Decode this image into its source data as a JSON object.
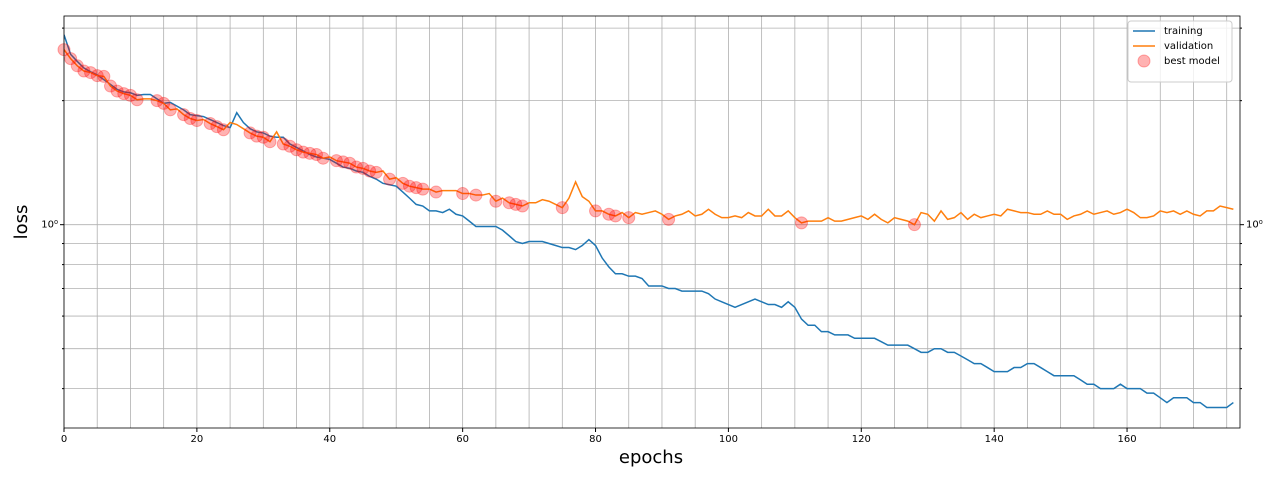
{
  "chart_data": {
    "type": "line",
    "xlabel": "epochs",
    "ylabel": "loss",
    "xlim": [
      0,
      177
    ],
    "xticks": [
      0,
      20,
      40,
      60,
      80,
      100,
      120,
      140,
      160
    ],
    "xminorticks": [
      5,
      10,
      15,
      25,
      30,
      35,
      45,
      50,
      55,
      65,
      70,
      75,
      85,
      90,
      95,
      105,
      110,
      115,
      125,
      130,
      135,
      145,
      150,
      155,
      165,
      170,
      175
    ],
    "yscale": "log",
    "ylim": [
      0.321,
      3.21
    ],
    "yticks": [
      {
        "value": 1,
        "label": "10⁰"
      }
    ],
    "yminorticks": [
      0.4,
      0.5,
      0.6,
      0.7,
      0.8,
      0.9,
      2,
      3
    ],
    "grid": true,
    "legend": "upper right",
    "x": [
      0,
      1,
      2,
      3,
      4,
      5,
      6,
      7,
      8,
      9,
      10,
      11,
      12,
      13,
      14,
      15,
      16,
      17,
      18,
      19,
      20,
      21,
      22,
      23,
      24,
      25,
      26,
      27,
      28,
      29,
      30,
      31,
      32,
      33,
      34,
      35,
      36,
      37,
      38,
      39,
      40,
      41,
      42,
      43,
      44,
      45,
      46,
      47,
      48,
      49,
      50,
      51,
      52,
      53,
      54,
      55,
      56,
      57,
      58,
      59,
      60,
      61,
      62,
      63,
      64,
      65,
      66,
      67,
      68,
      69,
      70,
      71,
      72,
      73,
      74,
      75,
      76,
      77,
      78,
      79,
      80,
      81,
      82,
      83,
      84,
      85,
      86,
      87,
      88,
      89,
      90,
      91,
      92,
      93,
      94,
      95,
      96,
      97,
      98,
      99,
      100,
      101,
      102,
      103,
      104,
      105,
      106,
      107,
      108,
      109,
      110,
      111,
      112,
      113,
      114,
      115,
      116,
      117,
      118,
      119,
      120,
      121,
      122,
      123,
      124,
      125,
      126,
      127,
      128,
      129,
      130,
      131,
      132,
      133,
      134,
      135,
      136,
      137,
      138,
      139,
      140,
      141,
      142,
      143,
      144,
      145,
      146,
      147,
      148,
      149,
      150,
      151,
      152,
      153,
      154,
      155,
      156,
      157,
      158,
      159,
      160,
      161,
      162,
      163,
      164,
      165,
      166,
      167,
      168,
      169,
      170,
      171,
      172,
      173,
      174,
      175,
      176
    ],
    "series": [
      {
        "name": "training",
        "color": "#1f77b4",
        "values": [
          2.89,
          2.59,
          2.49,
          2.4,
          2.35,
          2.31,
          2.25,
          2.19,
          2.13,
          2.1,
          2.09,
          2.06,
          2.07,
          2.07,
          2.02,
          1.97,
          1.98,
          1.94,
          1.9,
          1.85,
          1.84,
          1.83,
          1.8,
          1.77,
          1.74,
          1.72,
          1.87,
          1.77,
          1.71,
          1.68,
          1.67,
          1.64,
          1.63,
          1.63,
          1.57,
          1.54,
          1.51,
          1.48,
          1.46,
          1.45,
          1.44,
          1.41,
          1.38,
          1.37,
          1.35,
          1.34,
          1.31,
          1.29,
          1.26,
          1.25,
          1.24,
          1.2,
          1.16,
          1.12,
          1.11,
          1.08,
          1.08,
          1.07,
          1.09,
          1.06,
          1.05,
          1.02,
          0.99,
          0.99,
          0.99,
          0.99,
          0.97,
          0.94,
          0.91,
          0.9,
          0.91,
          0.91,
          0.91,
          0.9,
          0.89,
          0.88,
          0.88,
          0.87,
          0.89,
          0.92,
          0.89,
          0.83,
          0.79,
          0.76,
          0.76,
          0.75,
          0.75,
          0.74,
          0.71,
          0.71,
          0.71,
          0.7,
          0.7,
          0.69,
          0.69,
          0.69,
          0.69,
          0.68,
          0.66,
          0.65,
          0.64,
          0.63,
          0.64,
          0.65,
          0.66,
          0.65,
          0.64,
          0.64,
          0.63,
          0.65,
          0.63,
          0.59,
          0.57,
          0.57,
          0.55,
          0.55,
          0.54,
          0.54,
          0.54,
          0.53,
          0.53,
          0.53,
          0.53,
          0.52,
          0.51,
          0.51,
          0.51,
          0.51,
          0.5,
          0.49,
          0.49,
          0.5,
          0.5,
          0.49,
          0.49,
          0.48,
          0.47,
          0.46,
          0.46,
          0.45,
          0.44,
          0.44,
          0.44,
          0.45,
          0.45,
          0.46,
          0.46,
          0.45,
          0.44,
          0.43,
          0.43,
          0.43,
          0.43,
          0.42,
          0.41,
          0.41,
          0.4,
          0.4,
          0.4,
          0.41,
          0.4,
          0.4,
          0.4,
          0.39,
          0.39,
          0.38,
          0.37,
          0.38,
          0.38,
          0.38,
          0.37,
          0.37,
          0.36,
          0.36,
          0.36,
          0.36,
          0.37
        ]
      },
      {
        "name": "validation",
        "color": "#ff7f0e",
        "values": [
          2.66,
          2.53,
          2.43,
          2.36,
          2.34,
          2.3,
          2.29,
          2.17,
          2.11,
          2.08,
          2.06,
          2.01,
          2.02,
          2.02,
          2.0,
          1.97,
          1.9,
          1.91,
          1.85,
          1.81,
          1.79,
          1.8,
          1.76,
          1.73,
          1.7,
          1.77,
          1.75,
          1.71,
          1.67,
          1.64,
          1.63,
          1.59,
          1.68,
          1.57,
          1.55,
          1.52,
          1.5,
          1.49,
          1.48,
          1.45,
          1.46,
          1.43,
          1.42,
          1.41,
          1.38,
          1.37,
          1.35,
          1.34,
          1.35,
          1.29,
          1.3,
          1.26,
          1.24,
          1.23,
          1.22,
          1.22,
          1.2,
          1.21,
          1.21,
          1.21,
          1.19,
          1.19,
          1.18,
          1.18,
          1.19,
          1.14,
          1.16,
          1.13,
          1.12,
          1.11,
          1.13,
          1.13,
          1.15,
          1.14,
          1.12,
          1.1,
          1.16,
          1.27,
          1.17,
          1.14,
          1.08,
          1.08,
          1.06,
          1.05,
          1.07,
          1.04,
          1.07,
          1.06,
          1.07,
          1.08,
          1.06,
          1.03,
          1.05,
          1.06,
          1.08,
          1.05,
          1.06,
          1.09,
          1.06,
          1.04,
          1.04,
          1.05,
          1.04,
          1.07,
          1.05,
          1.05,
          1.09,
          1.05,
          1.05,
          1.08,
          1.04,
          1.01,
          1.02,
          1.02,
          1.02,
          1.04,
          1.02,
          1.02,
          1.03,
          1.04,
          1.05,
          1.03,
          1.06,
          1.03,
          1.01,
          1.04,
          1.03,
          1.02,
          1.0,
          1.07,
          1.06,
          1.02,
          1.08,
          1.03,
          1.04,
          1.07,
          1.03,
          1.06,
          1.04,
          1.05,
          1.06,
          1.05,
          1.09,
          1.08,
          1.07,
          1.07,
          1.06,
          1.06,
          1.08,
          1.06,
          1.06,
          1.03,
          1.05,
          1.06,
          1.08,
          1.06,
          1.07,
          1.08,
          1.06,
          1.07,
          1.09,
          1.07,
          1.04,
          1.04,
          1.05,
          1.08,
          1.07,
          1.08,
          1.06,
          1.08,
          1.06,
          1.05,
          1.08,
          1.08,
          1.11,
          1.1,
          1.09
        ]
      },
      {
        "name": "best model",
        "type": "scatter",
        "color": "#ff0000",
        "alpha": 0.3,
        "x": [
          0,
          1,
          2,
          3,
          4,
          5,
          6,
          7,
          8,
          9,
          10,
          11,
          14,
          15,
          16,
          18,
          19,
          20,
          22,
          23,
          24,
          28,
          29,
          30,
          31,
          33,
          34,
          35,
          36,
          37,
          38,
          39,
          41,
          42,
          43,
          44,
          45,
          46,
          47,
          49,
          51,
          52,
          53,
          54,
          56,
          60,
          62,
          65,
          67,
          68,
          69,
          75,
          80,
          82,
          83,
          85,
          91,
          111,
          128
        ],
        "values": [
          2.66,
          2.53,
          2.43,
          2.36,
          2.34,
          2.3,
          2.29,
          2.17,
          2.11,
          2.08,
          2.06,
          2.01,
          2.0,
          1.97,
          1.9,
          1.85,
          1.81,
          1.79,
          1.76,
          1.73,
          1.7,
          1.67,
          1.64,
          1.63,
          1.59,
          1.57,
          1.55,
          1.52,
          1.5,
          1.49,
          1.48,
          1.45,
          1.43,
          1.42,
          1.41,
          1.38,
          1.37,
          1.35,
          1.34,
          1.29,
          1.26,
          1.24,
          1.23,
          1.22,
          1.2,
          1.19,
          1.18,
          1.14,
          1.13,
          1.12,
          1.11,
          1.1,
          1.08,
          1.06,
          1.05,
          1.04,
          1.03,
          1.01,
          1.0
        ]
      }
    ]
  }
}
